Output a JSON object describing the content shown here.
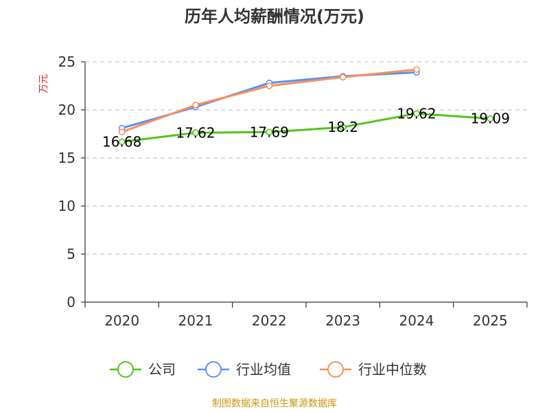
{
  "chart_data": {
    "type": "line",
    "title": "历年人均薪酬情况(万元)",
    "xlabel": "",
    "ylabel": "万元",
    "categories": [
      "2020",
      "2021",
      "2022",
      "2023",
      "2024",
      "2025"
    ],
    "ylim": [
      0,
      25
    ],
    "yticks": [
      0,
      5,
      10,
      15,
      20,
      25
    ],
    "grid": true,
    "legend_position": "bottom",
    "series": [
      {
        "name": "公司",
        "color": "#52c41a",
        "values": [
          16.68,
          17.62,
          17.69,
          18.2,
          19.62,
          19.09
        ],
        "data_labels": [
          "16.68",
          "17.62",
          "17.69",
          "18.2",
          "19.62",
          "19.09"
        ]
      },
      {
        "name": "行业均值",
        "color": "#5b8ff9",
        "values": [
          18.1,
          20.3,
          22.8,
          23.5,
          23.9,
          null
        ]
      },
      {
        "name": "行业中位数",
        "color": "#f6905a",
        "values": [
          17.7,
          20.5,
          22.5,
          23.4,
          24.2,
          null
        ]
      }
    ],
    "source": "制图数据来自恒生聚源数据库",
    "ylabel_color": "#e02020",
    "source_color": "#c8960c",
    "axis_color": "#333333",
    "grid_color": "#cccccc"
  }
}
